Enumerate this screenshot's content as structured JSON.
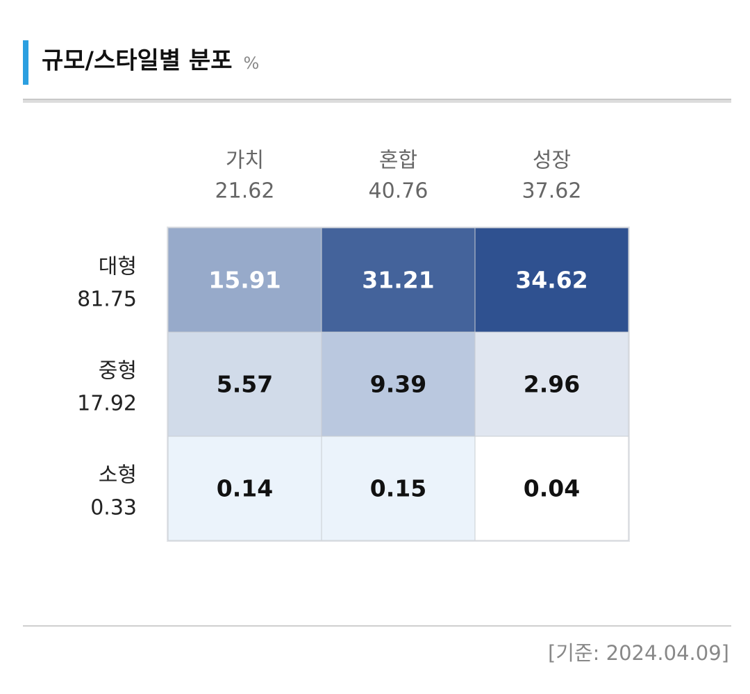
{
  "chart_data": {
    "type": "heatmap",
    "title": "규모/스타일별 분포",
    "unit": "%",
    "columns": [
      {
        "name": "가치",
        "total": 21.62
      },
      {
        "name": "혼합",
        "total": 40.76
      },
      {
        "name": "성장",
        "total": 37.62
      }
    ],
    "series": [
      {
        "name": "대형",
        "total": 81.75,
        "values": [
          15.91,
          31.21,
          34.62
        ],
        "colors": [
          "#97aaca",
          "#44639b",
          "#2f5190"
        ],
        "label_color": "#ffffff"
      },
      {
        "name": "중형",
        "total": 17.92,
        "values": [
          5.57,
          9.39,
          2.96
        ],
        "colors": [
          "#d1dbe9",
          "#bac8df",
          "#e0e6f0"
        ],
        "label_color": "#111111"
      },
      {
        "name": "소형",
        "total": 0.33,
        "values": [
          0.14,
          0.15,
          0.04
        ],
        "colors": [
          "#ebf3fb",
          "#ebf3fb",
          "#ffffff"
        ],
        "label_color": "#111111"
      }
    ],
    "footnote": "[기준: 2024.04.09]"
  }
}
